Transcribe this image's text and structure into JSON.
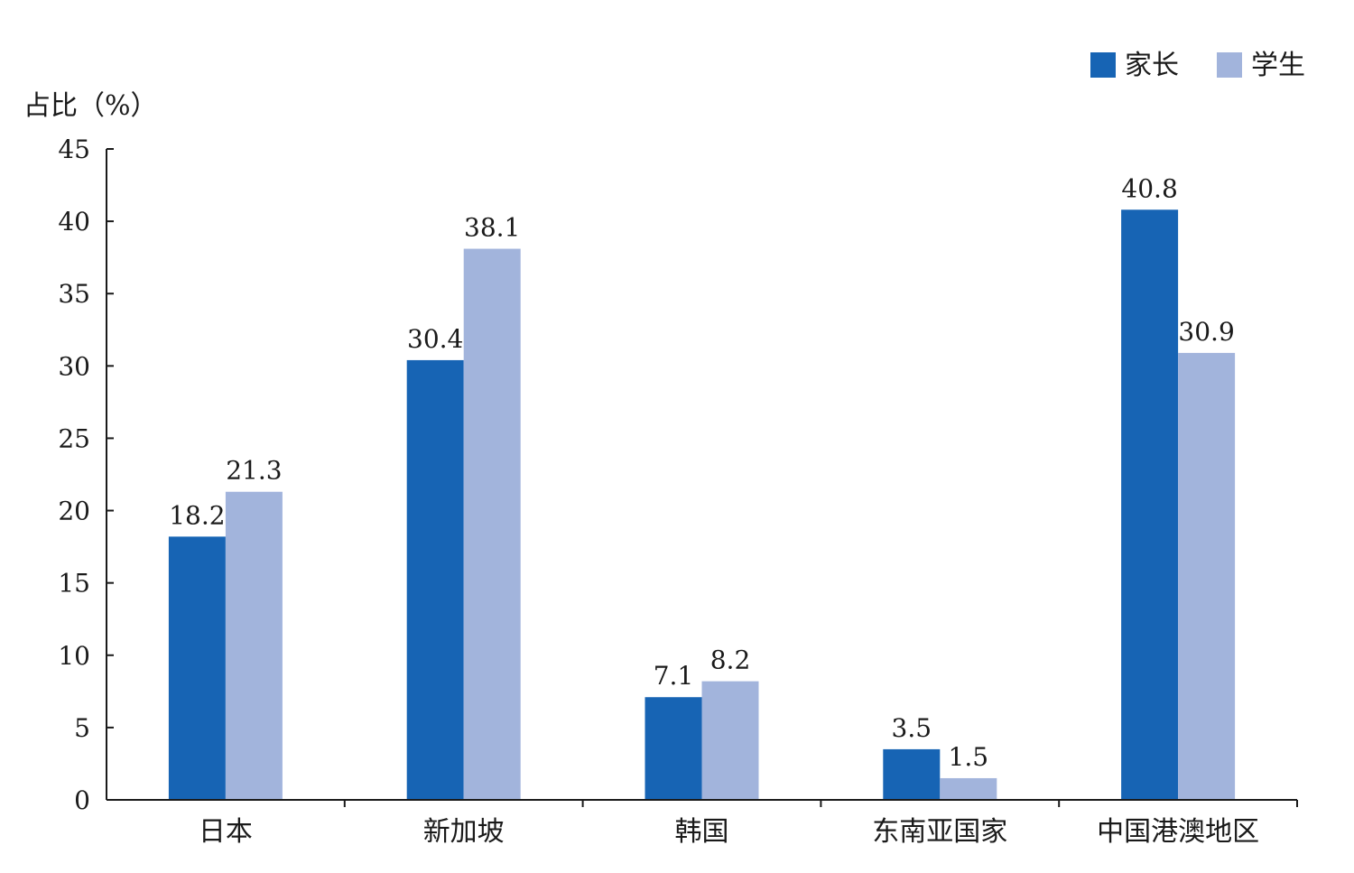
{
  "chart_data": {
    "type": "bar",
    "title": "",
    "xlabel": "",
    "ylabel": "占比（%）",
    "ylim": [
      0,
      45
    ],
    "ytick_step": 5,
    "yticks": [
      "0",
      "5",
      "10",
      "15",
      "20",
      "25",
      "30",
      "35",
      "40",
      "45"
    ],
    "categories": [
      "日本",
      "新加坡",
      "韩国",
      "东南亚国家",
      "中国港澳地区"
    ],
    "series": [
      {
        "name": "家长",
        "color": "#1764b4",
        "values": [
          18.2,
          30.4,
          7.1,
          3.5,
          40.8
        ],
        "labels": [
          "18.2",
          "30.4",
          "7.1",
          "3.5",
          "40.8"
        ]
      },
      {
        "name": "学生",
        "color": "#a2b4dc",
        "values": [
          21.3,
          38.1,
          8.2,
          1.5,
          30.9
        ],
        "labels": [
          "21.3",
          "38.1",
          "8.2",
          "1.5",
          "30.9"
        ]
      }
    ],
    "grid": false,
    "legend_position": "top-right"
  }
}
